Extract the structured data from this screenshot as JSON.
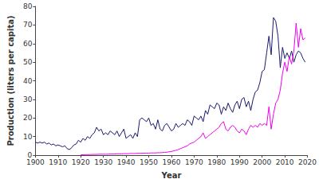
{
  "chart_data": {
    "type": "line",
    "x_label": "Year",
    "y_label": "Production (liters per capita)",
    "x": [
      1900,
      1901,
      1902,
      1903,
      1904,
      1905,
      1906,
      1907,
      1908,
      1909,
      1910,
      1911,
      1912,
      1913,
      1914,
      1915,
      1916,
      1917,
      1918,
      1919,
      1920,
      1921,
      1922,
      1923,
      1924,
      1925,
      1926,
      1927,
      1928,
      1929,
      1930,
      1931,
      1932,
      1933,
      1934,
      1935,
      1936,
      1937,
      1938,
      1939,
      1940,
      1941,
      1942,
      1943,
      1944,
      1945,
      1946,
      1947,
      1948,
      1949,
      1950,
      1951,
      1952,
      1953,
      1954,
      1955,
      1956,
      1957,
      1958,
      1959,
      1960,
      1961,
      1962,
      1963,
      1964,
      1965,
      1966,
      1967,
      1968,
      1969,
      1970,
      1971,
      1972,
      1973,
      1974,
      1975,
      1976,
      1977,
      1978,
      1979,
      1980,
      1981,
      1982,
      1983,
      1984,
      1985,
      1986,
      1987,
      1988,
      1989,
      1990,
      1991,
      1992,
      1993,
      1994,
      1995,
      1996,
      1997,
      1998,
      1999,
      2000,
      2001,
      2002,
      2003,
      2004,
      2005,
      2006,
      2007,
      2008,
      2009,
      2010,
      2011,
      2012,
      2013,
      2014,
      2015,
      2016,
      2017,
      2018,
      2019
    ],
    "series": [
      {
        "color": "#191970",
        "values": [
          7,
          6.5,
          7,
          6.5,
          7,
          6,
          6.5,
          5.5,
          6,
          5,
          5.5,
          5,
          4.5,
          5,
          3.5,
          3,
          4,
          5.5,
          6,
          8,
          7,
          9,
          8,
          10,
          9,
          11,
          12,
          15,
          13,
          14,
          11,
          12,
          11,
          13,
          12,
          11,
          13,
          10,
          12,
          14,
          9,
          10,
          11,
          9,
          12,
          10,
          19,
          20,
          19,
          18,
          20,
          16,
          17,
          14,
          19,
          14,
          13,
          16,
          17,
          15,
          13,
          14,
          17,
          15,
          16,
          17,
          16,
          19,
          18,
          16,
          21,
          20,
          19,
          21,
          18,
          24,
          22,
          27,
          26,
          25,
          28,
          27,
          22,
          26,
          24,
          28,
          25,
          23,
          27,
          29,
          25,
          30,
          31,
          26,
          29,
          24,
          30,
          34,
          35,
          39,
          45,
          46,
          55,
          64,
          54,
          74,
          72,
          64,
          47,
          58,
          52,
          55,
          52,
          56,
          50,
          54,
          56,
          55,
          52,
          50
        ]
      },
      {
        "color": "#ee00ee",
        "values": [
          null,
          null,
          null,
          null,
          null,
          null,
          null,
          null,
          null,
          null,
          null,
          null,
          null,
          null,
          null,
          null,
          null,
          null,
          null,
          null,
          0.2,
          0.2,
          0.3,
          0.3,
          0.3,
          0.4,
          0.4,
          0.4,
          0.5,
          0.5,
          0.5,
          0.5,
          0.5,
          0.6,
          0.6,
          0.6,
          0.7,
          0.7,
          0.7,
          0.8,
          0.8,
          0.8,
          0.9,
          0.9,
          0.9,
          1,
          1,
          1,
          1.1,
          1.1,
          1.1,
          1.2,
          1.2,
          1.2,
          1.3,
          1.3,
          1.4,
          1.5,
          1.6,
          1.8,
          2,
          2.3,
          2.6,
          3,
          3.5,
          4,
          4.5,
          5,
          6,
          6.5,
          7,
          8,
          9,
          10,
          12,
          9,
          10,
          11,
          12,
          13,
          14,
          15,
          17,
          18,
          14,
          13,
          15,
          16,
          15,
          13,
          12,
          14,
          13,
          11,
          14,
          16,
          15,
          16,
          15,
          17,
          16,
          17,
          16,
          26,
          14,
          22,
          28,
          30,
          35,
          44,
          50,
          45,
          53,
          49,
          56,
          71,
          58,
          68,
          62,
          63
        ]
      }
    ],
    "xlim": [
      1900,
      2020
    ],
    "xticks": [
      1900,
      1910,
      1920,
      1930,
      1940,
      1950,
      1960,
      1970,
      1980,
      1990,
      2000,
      2010,
      2020
    ],
    "ylim": [
      0,
      80
    ],
    "yticks": [
      0,
      10,
      20,
      30,
      40,
      50,
      60,
      70,
      80
    ],
    "grid": false
  }
}
